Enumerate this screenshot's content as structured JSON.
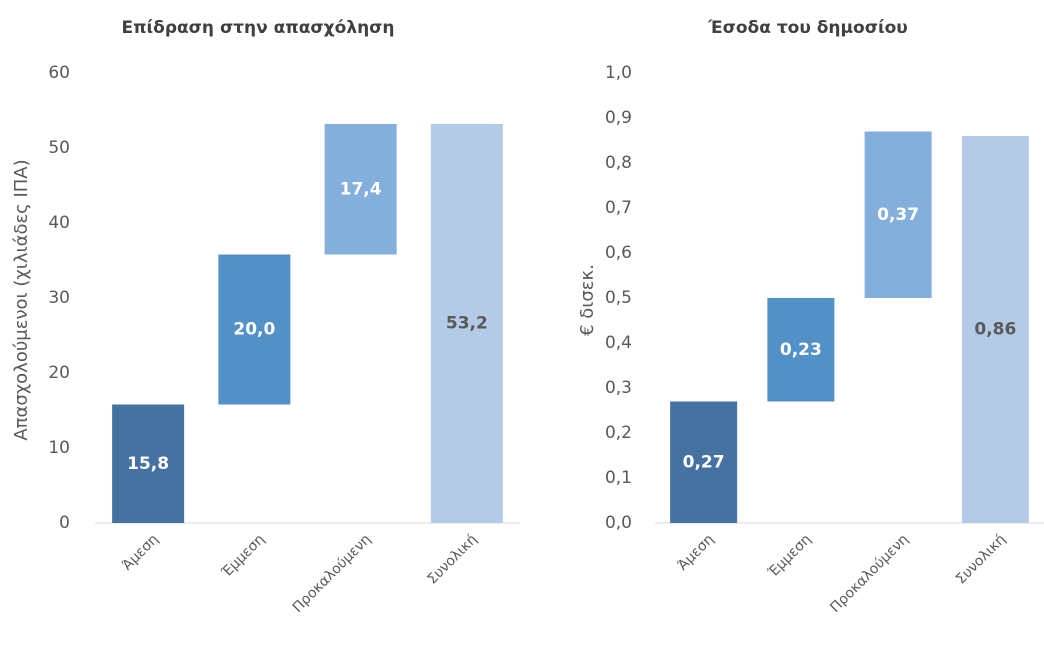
{
  "chart_data": [
    {
      "type": "waterfall",
      "title": "Επίδραση στην απασχόληση",
      "y_label": "Απασχολούμενοι (χιλιάδες ΙΠΑ)",
      "categories": [
        "Άμεση",
        "Έμμεση",
        "Προκαλούμενη",
        "Συνολική"
      ],
      "values": [
        15.8,
        20.0,
        17.4,
        53.2
      ],
      "value_labels": [
        "15,8",
        "20,0",
        "17,4",
        "53,2"
      ],
      "colors": [
        "#4672a2",
        "#5290c8",
        "#84aedb",
        "#b4cbe7"
      ],
      "ylim": [
        0,
        60
      ],
      "yticks": [
        0,
        10,
        20,
        30,
        40,
        50,
        60
      ]
    },
    {
      "type": "waterfall",
      "title": "Έσοδα του δημοσίου",
      "y_label": "€ δισεκ.",
      "categories": [
        "Άμεση",
        "Έμμεση",
        "Προκαλούμενη",
        "Συνολική"
      ],
      "values": [
        0.27,
        0.23,
        0.37,
        0.86
      ],
      "value_labels": [
        "0,27",
        "0,23",
        "0,37",
        "0,86"
      ],
      "colors": [
        "#4672a2",
        "#5290c8",
        "#84aedb",
        "#b4cbe7"
      ],
      "ylim": [
        0,
        1.0
      ],
      "yticks": [
        {
          "value": 0,
          "label": "0,0"
        },
        {
          "value": 0.1,
          "label": "0,1"
        },
        {
          "value": 0.2,
          "label": "0,2"
        },
        {
          "value": 0.3,
          "label": "0,3"
        },
        {
          "value": 0.4,
          "label": "0,4"
        },
        {
          "value": 0.5,
          "label": "0,5"
        },
        {
          "value": 0.6,
          "label": "0,6"
        },
        {
          "value": 0.7,
          "label": "0,7"
        },
        {
          "value": 0.8,
          "label": "0,8"
        },
        {
          "value": 0.9,
          "label": "0,9"
        },
        {
          "value": 1.0,
          "label": "1,0"
        }
      ]
    }
  ]
}
